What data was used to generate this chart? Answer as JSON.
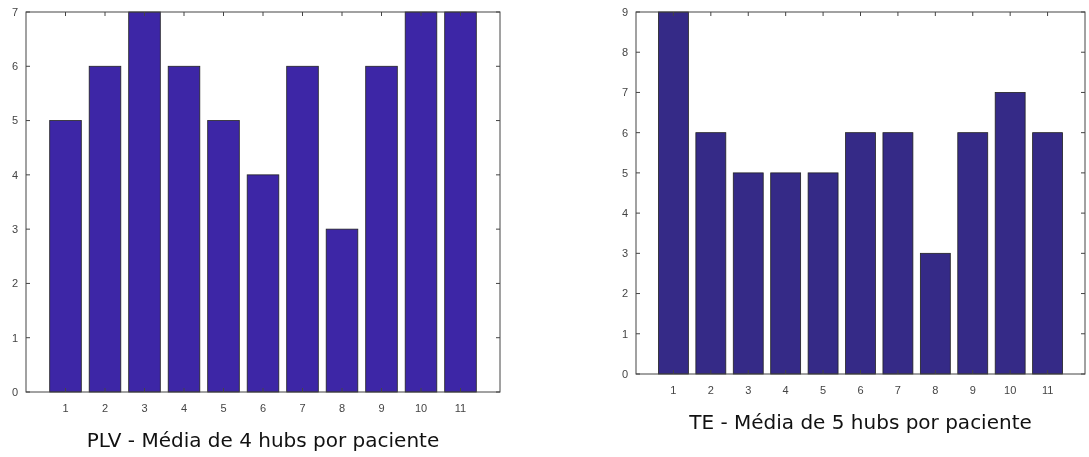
{
  "chart_data": [
    {
      "type": "bar",
      "title": "PLV - Média de 4 hubs por paciente",
      "categories": [
        "1",
        "2",
        "3",
        "4",
        "5",
        "6",
        "7",
        "8",
        "9",
        "10",
        "11"
      ],
      "values": [
        5,
        6,
        7,
        6,
        5,
        4,
        6,
        3,
        6,
        7,
        7
      ],
      "color": "#3d26a6",
      "ylim": [
        0,
        7
      ],
      "yticks": [
        0,
        1,
        2,
        3,
        4,
        5,
        6,
        7
      ],
      "grid": false
    },
    {
      "type": "bar",
      "title": "TE - Média de 5 hubs por paciente",
      "categories": [
        "1",
        "2",
        "3",
        "4",
        "5",
        "6",
        "7",
        "8",
        "9",
        "10",
        "11"
      ],
      "values": [
        9,
        6,
        5,
        5,
        5,
        6,
        6,
        3,
        6,
        7,
        6
      ],
      "color": "#352a87",
      "ylim": [
        0,
        9
      ],
      "yticks": [
        0,
        1,
        2,
        3,
        4,
        5,
        6,
        7,
        8,
        9
      ],
      "grid": false
    }
  ]
}
